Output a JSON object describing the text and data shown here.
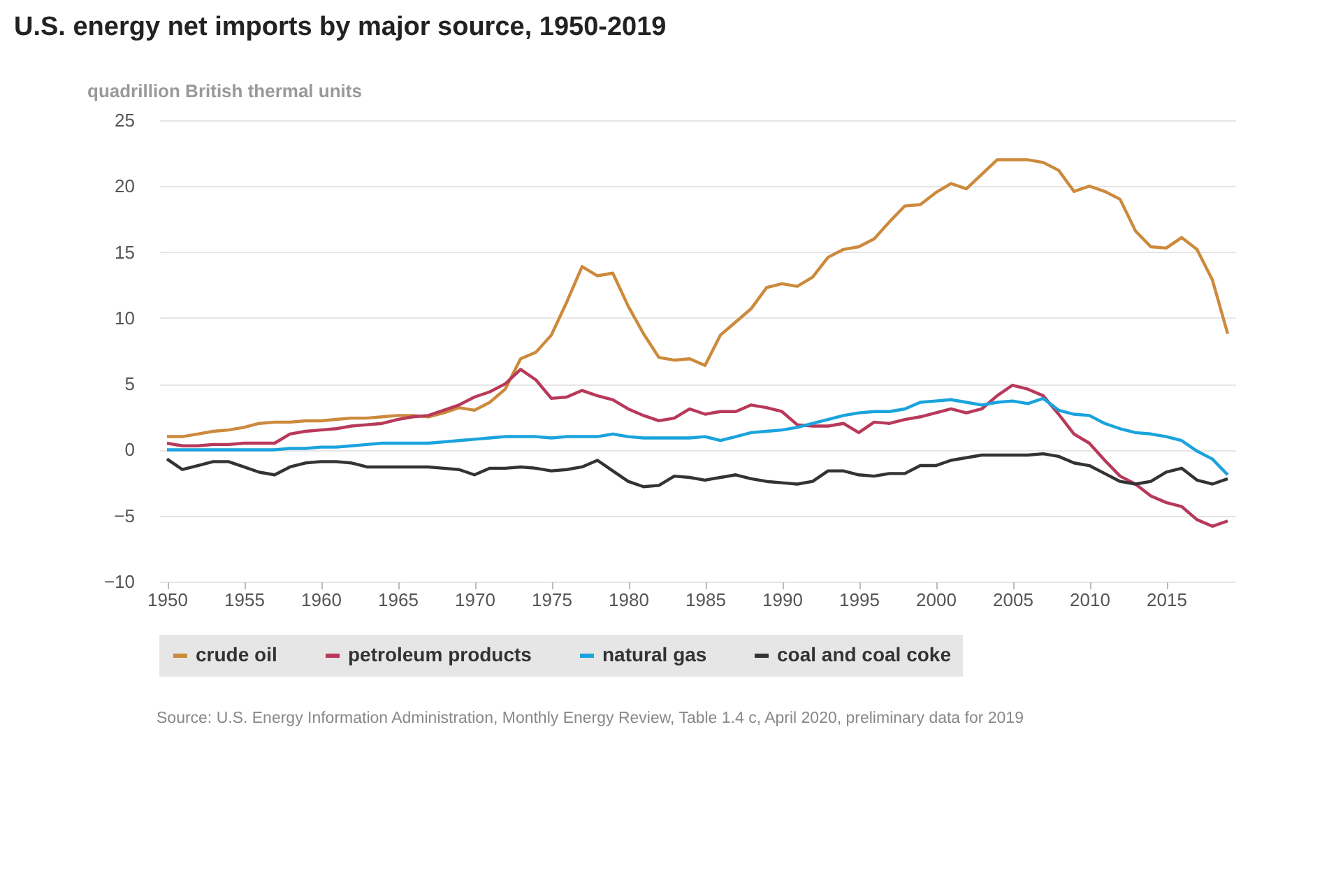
{
  "chart_data": {
    "type": "line",
    "title": "U.S. energy net imports by major source, 1950-2019",
    "ylabel": "quadrillion British thermal units",
    "annotations": [
      "Source: U.S. Energy Information Administration, Monthly Energy Review, Table 1.4 c, April 2020, preliminary data for 2019"
    ],
    "x": [
      1950,
      1951,
      1952,
      1953,
      1954,
      1955,
      1956,
      1957,
      1958,
      1959,
      1960,
      1961,
      1962,
      1963,
      1964,
      1965,
      1966,
      1967,
      1968,
      1969,
      1970,
      1971,
      1972,
      1973,
      1974,
      1975,
      1976,
      1977,
      1978,
      1979,
      1980,
      1981,
      1982,
      1983,
      1984,
      1985,
      1986,
      1987,
      1988,
      1989,
      1990,
      1991,
      1992,
      1993,
      1994,
      1995,
      1996,
      1997,
      1998,
      1999,
      2000,
      2001,
      2002,
      2003,
      2004,
      2005,
      2006,
      2007,
      2008,
      2009,
      2010,
      2011,
      2012,
      2013,
      2014,
      2015,
      2016,
      2017,
      2018,
      2019
    ],
    "series": [
      {
        "name": "crude oil",
        "color": "#cc8a3c",
        "values": [
          1.0,
          1.0,
          1.2,
          1.4,
          1.5,
          1.7,
          2.0,
          2.1,
          2.1,
          2.2,
          2.2,
          2.3,
          2.4,
          2.4,
          2.5,
          2.6,
          2.6,
          2.5,
          2.8,
          3.2,
          3.0,
          3.6,
          4.6,
          6.9,
          7.4,
          8.7,
          11.2,
          13.9,
          13.2,
          13.4,
          10.9,
          8.8,
          7.0,
          6.8,
          6.9,
          6.4,
          8.7,
          9.7,
          10.7,
          12.3,
          12.6,
          12.4,
          13.1,
          14.6,
          15.2,
          15.4,
          16.0,
          17.3,
          18.5,
          18.6,
          19.5,
          20.2,
          19.8,
          20.9,
          22.0,
          22.0,
          22.0,
          21.8,
          21.2,
          19.6,
          20.0,
          19.6,
          19.0,
          16.6,
          15.4,
          15.3,
          16.1,
          15.2,
          12.9,
          8.8
        ]
      },
      {
        "name": "petroleum products",
        "color": "#b8395a",
        "values": [
          0.5,
          0.3,
          0.3,
          0.4,
          0.4,
          0.5,
          0.5,
          0.5,
          1.2,
          1.4,
          1.5,
          1.6,
          1.8,
          1.9,
          2.0,
          2.3,
          2.5,
          2.6,
          3.0,
          3.4,
          4.0,
          4.4,
          5.0,
          6.1,
          5.3,
          3.9,
          4.0,
          4.5,
          4.1,
          3.8,
          3.1,
          2.6,
          2.2,
          2.4,
          3.1,
          2.7,
          2.9,
          2.9,
          3.4,
          3.2,
          2.9,
          1.9,
          1.8,
          1.8,
          2.0,
          1.3,
          2.1,
          2.0,
          2.3,
          2.5,
          2.8,
          3.1,
          2.8,
          3.1,
          4.1,
          4.9,
          4.6,
          4.1,
          2.7,
          1.2,
          0.5,
          -0.8,
          -2.0,
          -2.6,
          -3.5,
          -4.0,
          -4.3,
          -5.3,
          -5.8,
          -5.4
        ]
      },
      {
        "name": "natural gas",
        "color": "#1aa3dd",
        "values": [
          0.0,
          0.0,
          0.0,
          0.0,
          0.0,
          0.0,
          0.0,
          0.0,
          0.1,
          0.1,
          0.2,
          0.2,
          0.3,
          0.4,
          0.5,
          0.5,
          0.5,
          0.5,
          0.6,
          0.7,
          0.8,
          0.9,
          1.0,
          1.0,
          1.0,
          0.9,
          1.0,
          1.0,
          1.0,
          1.2,
          1.0,
          0.9,
          0.9,
          0.9,
          0.9,
          1.0,
          0.7,
          1.0,
          1.3,
          1.4,
          1.5,
          1.7,
          2.0,
          2.3,
          2.6,
          2.8,
          2.9,
          2.9,
          3.1,
          3.6,
          3.7,
          3.8,
          3.6,
          3.4,
          3.6,
          3.7,
          3.5,
          3.9,
          3.0,
          2.7,
          2.6,
          2.0,
          1.6,
          1.3,
          1.2,
          1.0,
          0.7,
          -0.1,
          -0.7,
          -1.9
        ]
      },
      {
        "name": "coal and coal coke",
        "color": "#333333",
        "values": [
          -0.7,
          -1.5,
          -1.2,
          -0.9,
          -0.9,
          -1.3,
          -1.7,
          -1.9,
          -1.3,
          -1.0,
          -0.9,
          -0.9,
          -1.0,
          -1.3,
          -1.3,
          -1.3,
          -1.3,
          -1.3,
          -1.4,
          -1.5,
          -1.9,
          -1.4,
          -1.4,
          -1.3,
          -1.4,
          -1.6,
          -1.5,
          -1.3,
          -0.8,
          -1.6,
          -2.4,
          -2.8,
          -2.7,
          -2.0,
          -2.1,
          -2.3,
          -2.1,
          -1.9,
          -2.2,
          -2.4,
          -2.5,
          -2.6,
          -2.4,
          -1.6,
          -1.6,
          -1.9,
          -2.0,
          -1.8,
          -1.8,
          -1.2,
          -1.2,
          -0.8,
          -0.6,
          -0.4,
          -0.4,
          -0.4,
          -0.4,
          -0.3,
          -0.5,
          -1.0,
          -1.2,
          -1.8,
          -2.4,
          -2.6,
          -2.4,
          -1.7,
          -1.4,
          -2.3,
          -2.6,
          -2.2
        ]
      }
    ],
    "xlim": [
      1949.5,
      2019.5
    ],
    "xticks": [
      1950,
      1955,
      1960,
      1965,
      1970,
      1975,
      1980,
      1985,
      1990,
      1995,
      2000,
      2005,
      2010,
      2015
    ],
    "ylim": [
      -10,
      25
    ],
    "yticks": [
      -10,
      -5,
      0,
      5,
      10,
      15,
      20,
      25
    ],
    "grid": "y",
    "legend": "bottom",
    "marker": "none",
    "line_style": "solid"
  }
}
